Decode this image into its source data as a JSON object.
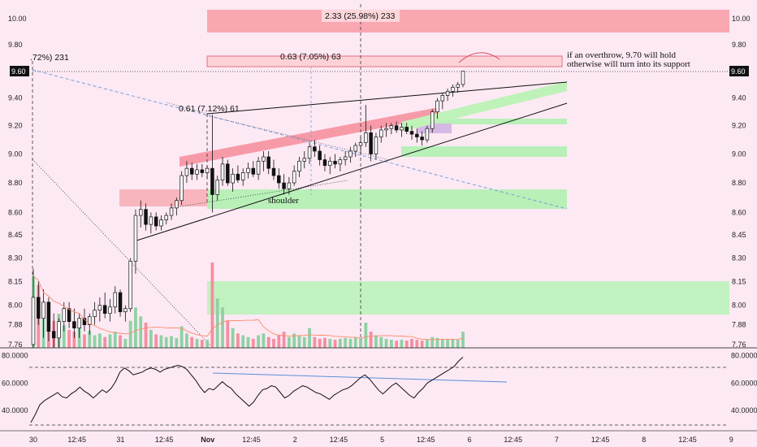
{
  "chart_data": {
    "type": "candlestick",
    "price_axis": {
      "ticks": [
        "10.00",
        "9.80",
        "9.60",
        "9.40",
        "9.20",
        "9.00",
        "8.80",
        "8.60",
        "8.45",
        "8.30",
        "8.15",
        "8.00",
        "7.88",
        "7.76"
      ],
      "current_price_label": "9.60",
      "ylim": [
        7.74,
        10.12
      ],
      "scale": "log"
    },
    "rsi_axis": {
      "ticks": [
        "80.0000",
        "60.0000",
        "40.0000"
      ],
      "ylim": [
        25,
        84
      ],
      "upper_level": 70,
      "lower_level": 30
    },
    "time_axis": {
      "ticks": [
        "30",
        "12:45",
        "31",
        "12:45",
        "Nov",
        "12:45",
        "2",
        "12:45",
        "5",
        "12:45",
        "6",
        "12:45",
        "7",
        "12:45",
        "8",
        "12:45",
        "9"
      ]
    },
    "candles": [
      {
        "o": 7.76,
        "h": 8.23,
        "l": 7.74,
        "c": 8.05
      },
      {
        "o": 8.05,
        "h": 8.15,
        "l": 7.88,
        "c": 7.92
      },
      {
        "o": 7.92,
        "h": 8.1,
        "l": 7.8,
        "c": 8.02
      },
      {
        "o": 8.02,
        "h": 8.05,
        "l": 7.78,
        "c": 7.84
      },
      {
        "o": 7.84,
        "h": 7.95,
        "l": 7.74,
        "c": 7.8
      },
      {
        "o": 7.8,
        "h": 7.92,
        "l": 7.74,
        "c": 7.9
      },
      {
        "o": 7.9,
        "h": 8.02,
        "l": 7.84,
        "c": 7.98
      },
      {
        "o": 7.98,
        "h": 8.02,
        "l": 7.86,
        "c": 7.9
      },
      {
        "o": 7.9,
        "h": 7.98,
        "l": 7.8,
        "c": 7.86
      },
      {
        "o": 7.86,
        "h": 7.95,
        "l": 7.8,
        "c": 7.92
      },
      {
        "o": 7.92,
        "h": 7.98,
        "l": 7.84,
        "c": 7.88
      },
      {
        "o": 7.88,
        "h": 7.95,
        "l": 7.82,
        "c": 7.93
      },
      {
        "o": 7.93,
        "h": 8.02,
        "l": 7.88,
        "c": 7.97
      },
      {
        "o": 7.97,
        "h": 8.05,
        "l": 7.9,
        "c": 8.0
      },
      {
        "o": 8.0,
        "h": 8.08,
        "l": 7.92,
        "c": 7.95
      },
      {
        "o": 7.95,
        "h": 8.04,
        "l": 7.9,
        "c": 7.99
      },
      {
        "o": 7.99,
        "h": 8.12,
        "l": 7.95,
        "c": 8.08
      },
      {
        "o": 8.08,
        "h": 8.1,
        "l": 7.93,
        "c": 7.96
      },
      {
        "o": 7.96,
        "h": 8.0,
        "l": 7.9,
        "c": 7.98
      },
      {
        "o": 7.98,
        "h": 8.3,
        "l": 7.96,
        "c": 8.28
      },
      {
        "o": 8.28,
        "h": 8.62,
        "l": 8.2,
        "c": 8.58
      },
      {
        "o": 8.58,
        "h": 8.68,
        "l": 8.5,
        "c": 8.62
      },
      {
        "o": 8.62,
        "h": 8.66,
        "l": 8.48,
        "c": 8.52
      },
      {
        "o": 8.52,
        "h": 8.6,
        "l": 8.46,
        "c": 8.57
      },
      {
        "o": 8.57,
        "h": 8.6,
        "l": 8.48,
        "c": 8.51
      },
      {
        "o": 8.51,
        "h": 8.58,
        "l": 8.48,
        "c": 8.55
      },
      {
        "o": 8.55,
        "h": 8.6,
        "l": 8.52,
        "c": 8.58
      },
      {
        "o": 8.58,
        "h": 8.66,
        "l": 8.55,
        "c": 8.63
      },
      {
        "o": 8.63,
        "h": 8.7,
        "l": 8.58,
        "c": 8.68
      },
      {
        "o": 8.68,
        "h": 8.88,
        "l": 8.65,
        "c": 8.85
      },
      {
        "o": 8.85,
        "h": 8.95,
        "l": 8.8,
        "c": 8.9
      },
      {
        "o": 8.9,
        "h": 8.94,
        "l": 8.82,
        "c": 8.86
      },
      {
        "o": 8.86,
        "h": 8.93,
        "l": 8.82,
        "c": 8.89
      },
      {
        "o": 8.89,
        "h": 8.93,
        "l": 8.84,
        "c": 8.87
      },
      {
        "o": 8.87,
        "h": 8.92,
        "l": 8.83,
        "c": 8.9
      },
      {
        "o": 8.9,
        "h": 9.28,
        "l": 8.6,
        "c": 8.72
      },
      {
        "o": 8.72,
        "h": 8.85,
        "l": 8.68,
        "c": 8.82
      },
      {
        "o": 8.82,
        "h": 8.98,
        "l": 8.78,
        "c": 8.93
      },
      {
        "o": 8.93,
        "h": 8.96,
        "l": 8.78,
        "c": 8.8
      },
      {
        "o": 8.8,
        "h": 8.9,
        "l": 8.74,
        "c": 8.86
      },
      {
        "o": 8.86,
        "h": 8.92,
        "l": 8.8,
        "c": 8.82
      },
      {
        "o": 8.82,
        "h": 8.9,
        "l": 8.78,
        "c": 8.87
      },
      {
        "o": 8.87,
        "h": 8.94,
        "l": 8.83,
        "c": 8.9
      },
      {
        "o": 8.9,
        "h": 8.95,
        "l": 8.84,
        "c": 8.86
      },
      {
        "o": 8.86,
        "h": 8.98,
        "l": 8.82,
        "c": 8.95
      },
      {
        "o": 8.95,
        "h": 9.02,
        "l": 8.88,
        "c": 8.98
      },
      {
        "o": 8.98,
        "h": 9.02,
        "l": 8.86,
        "c": 8.9
      },
      {
        "o": 8.9,
        "h": 8.96,
        "l": 8.82,
        "c": 8.85
      },
      {
        "o": 8.85,
        "h": 8.9,
        "l": 8.76,
        "c": 8.8
      },
      {
        "o": 8.8,
        "h": 8.86,
        "l": 8.72,
        "c": 8.76
      },
      {
        "o": 8.76,
        "h": 8.84,
        "l": 8.72,
        "c": 8.8
      },
      {
        "o": 8.8,
        "h": 8.92,
        "l": 8.78,
        "c": 8.88
      },
      {
        "o": 8.88,
        "h": 8.98,
        "l": 8.84,
        "c": 8.95
      },
      {
        "o": 8.95,
        "h": 9.02,
        "l": 8.9,
        "c": 8.97
      },
      {
        "o": 8.97,
        "h": 9.08,
        "l": 8.93,
        "c": 9.05
      },
      {
        "o": 9.05,
        "h": 9.1,
        "l": 8.98,
        "c": 9.02
      },
      {
        "o": 9.02,
        "h": 9.06,
        "l": 8.92,
        "c": 8.96
      },
      {
        "o": 8.96,
        "h": 9.0,
        "l": 8.88,
        "c": 8.92
      },
      {
        "o": 8.92,
        "h": 8.98,
        "l": 8.86,
        "c": 8.95
      },
      {
        "o": 8.95,
        "h": 9.0,
        "l": 8.9,
        "c": 8.93
      },
      {
        "o": 8.93,
        "h": 8.98,
        "l": 8.88,
        "c": 8.96
      },
      {
        "o": 8.96,
        "h": 9.02,
        "l": 8.92,
        "c": 8.98
      },
      {
        "o": 8.98,
        "h": 9.05,
        "l": 8.94,
        "c": 9.02
      },
      {
        "o": 9.02,
        "h": 9.08,
        "l": 8.98,
        "c": 9.06
      },
      {
        "o": 9.06,
        "h": 9.12,
        "l": 9.0,
        "c": 9.08
      },
      {
        "o": 9.08,
        "h": 9.35,
        "l": 9.05,
        "c": 9.15
      },
      {
        "o": 9.15,
        "h": 9.2,
        "l": 8.95,
        "c": 9.0
      },
      {
        "o": 9.0,
        "h": 9.15,
        "l": 8.96,
        "c": 9.12
      },
      {
        "o": 9.12,
        "h": 9.2,
        "l": 9.08,
        "c": 9.17
      },
      {
        "o": 9.17,
        "h": 9.22,
        "l": 9.12,
        "c": 9.18
      },
      {
        "o": 9.18,
        "h": 9.22,
        "l": 9.14,
        "c": 9.2
      },
      {
        "o": 9.2,
        "h": 9.23,
        "l": 9.15,
        "c": 9.17
      },
      {
        "o": 9.17,
        "h": 9.22,
        "l": 9.12,
        "c": 9.19
      },
      {
        "o": 9.19,
        "h": 9.22,
        "l": 9.14,
        "c": 9.16
      },
      {
        "o": 9.16,
        "h": 9.2,
        "l": 9.1,
        "c": 9.14
      },
      {
        "o": 9.14,
        "h": 9.18,
        "l": 9.08,
        "c": 9.12
      },
      {
        "o": 9.12,
        "h": 9.16,
        "l": 9.06,
        "c": 9.1
      },
      {
        "o": 9.1,
        "h": 9.2,
        "l": 9.08,
        "c": 9.18
      },
      {
        "o": 9.18,
        "h": 9.32,
        "l": 9.15,
        "c": 9.3
      },
      {
        "o": 9.3,
        "h": 9.4,
        "l": 9.25,
        "c": 9.38
      },
      {
        "o": 9.38,
        "h": 9.44,
        "l": 9.32,
        "c": 9.42
      },
      {
        "o": 9.42,
        "h": 9.47,
        "l": 9.38,
        "c": 9.45
      },
      {
        "o": 9.45,
        "h": 9.5,
        "l": 9.41,
        "c": 9.48
      },
      {
        "o": 9.48,
        "h": 9.52,
        "l": 9.44,
        "c": 9.5
      },
      {
        "o": 9.5,
        "h": 9.6,
        "l": 9.48,
        "c": 9.6
      }
    ],
    "volume_bars": [
      {
        "v": 80,
        "up": true
      },
      {
        "v": 70,
        "up": false
      },
      {
        "v": 35,
        "up": true
      },
      {
        "v": 45,
        "up": false
      },
      {
        "v": 30,
        "up": false
      },
      {
        "v": 38,
        "up": true
      },
      {
        "v": 25,
        "up": true
      },
      {
        "v": 20,
        "up": false
      },
      {
        "v": 18,
        "up": false
      },
      {
        "v": 22,
        "up": true
      },
      {
        "v": 15,
        "up": false
      },
      {
        "v": 19,
        "up": true
      },
      {
        "v": 14,
        "up": true
      },
      {
        "v": 16,
        "up": true
      },
      {
        "v": 12,
        "up": false
      },
      {
        "v": 15,
        "up": true
      },
      {
        "v": 18,
        "up": true
      },
      {
        "v": 14,
        "up": false
      },
      {
        "v": 10,
        "up": true
      },
      {
        "v": 30,
        "up": true
      },
      {
        "v": 45,
        "up": true
      },
      {
        "v": 35,
        "up": true
      },
      {
        "v": 28,
        "up": false
      },
      {
        "v": 20,
        "up": true
      },
      {
        "v": 15,
        "up": false
      },
      {
        "v": 14,
        "up": true
      },
      {
        "v": 12,
        "up": true
      },
      {
        "v": 13,
        "up": true
      },
      {
        "v": 11,
        "up": true
      },
      {
        "v": 24,
        "up": true
      },
      {
        "v": 16,
        "up": true
      },
      {
        "v": 12,
        "up": false
      },
      {
        "v": 10,
        "up": true
      },
      {
        "v": 9,
        "up": false
      },
      {
        "v": 9,
        "up": true
      },
      {
        "v": 95,
        "up": false
      },
      {
        "v": 55,
        "up": true
      },
      {
        "v": 45,
        "up": true
      },
      {
        "v": 30,
        "up": false
      },
      {
        "v": 22,
        "up": true
      },
      {
        "v": 16,
        "up": false
      },
      {
        "v": 14,
        "up": true
      },
      {
        "v": 12,
        "up": true
      },
      {
        "v": 10,
        "up": false
      },
      {
        "v": 14,
        "up": true
      },
      {
        "v": 16,
        "up": true
      },
      {
        "v": 12,
        "up": false
      },
      {
        "v": 10,
        "up": false
      },
      {
        "v": 14,
        "up": false
      },
      {
        "v": 18,
        "up": false
      },
      {
        "v": 12,
        "up": true
      },
      {
        "v": 16,
        "up": true
      },
      {
        "v": 14,
        "up": true
      },
      {
        "v": 12,
        "up": true
      },
      {
        "v": 22,
        "up": true
      },
      {
        "v": 12,
        "up": false
      },
      {
        "v": 10,
        "up": false
      },
      {
        "v": 11,
        "up": false
      },
      {
        "v": 10,
        "up": true
      },
      {
        "v": 9,
        "up": false
      },
      {
        "v": 10,
        "up": true
      },
      {
        "v": 11,
        "up": true
      },
      {
        "v": 10,
        "up": true
      },
      {
        "v": 12,
        "up": true
      },
      {
        "v": 11,
        "up": true
      },
      {
        "v": 28,
        "up": true
      },
      {
        "v": 18,
        "up": false
      },
      {
        "v": 14,
        "up": true
      },
      {
        "v": 12,
        "up": true
      },
      {
        "v": 10,
        "up": true
      },
      {
        "v": 9,
        "up": true
      },
      {
        "v": 8,
        "up": false
      },
      {
        "v": 9,
        "up": true
      },
      {
        "v": 8,
        "up": false
      },
      {
        "v": 10,
        "up": false
      },
      {
        "v": 9,
        "up": false
      },
      {
        "v": 8,
        "up": false
      },
      {
        "v": 9,
        "up": true
      },
      {
        "v": 12,
        "up": true
      },
      {
        "v": 11,
        "up": true
      },
      {
        "v": 10,
        "up": true
      },
      {
        "v": 9,
        "up": true
      },
      {
        "v": 10,
        "up": true
      },
      {
        "v": 9,
        "up": true
      },
      {
        "v": 18,
        "up": true
      }
    ],
    "rsi_values": [
      31,
      37,
      44,
      47,
      49,
      51,
      53,
      50,
      49,
      52,
      54,
      57,
      54,
      52,
      49,
      52,
      55,
      53,
      56,
      61,
      68,
      71,
      69,
      66,
      67,
      68,
      70,
      71,
      70,
      68,
      70,
      71,
      72,
      73,
      72,
      70,
      66,
      62,
      57,
      53,
      56,
      55,
      58,
      61,
      58,
      56,
      52,
      49,
      46,
      43,
      46,
      51,
      55,
      56,
      58,
      57,
      53,
      49,
      51,
      54,
      56,
      58,
      57,
      55,
      53,
      52,
      50,
      48,
      51,
      53,
      55,
      56,
      58,
      61,
      64,
      66,
      63,
      59,
      55,
      52,
      55,
      58,
      60,
      57,
      54,
      51,
      49,
      53,
      56,
      60,
      62,
      64,
      66,
      68,
      70,
      72,
      76,
      79
    ],
    "zones": [
      {
        "type": "supply",
        "from": 9.92,
        "to": 10.08,
        "label": "2.33 (25.98%) 233"
      },
      {
        "type": "supply_outline",
        "from": 9.71,
        "to": 9.78,
        "label": "0.63 (7.05%) 63"
      },
      {
        "type": "demand",
        "from": 9.2,
        "to": 9.23
      },
      {
        "type": "demand",
        "from": 8.98,
        "to": 9.04
      },
      {
        "type": "demand",
        "from": 8.6,
        "to": 8.74
      },
      {
        "type": "supply",
        "from": 8.61,
        "to": 8.75
      },
      {
        "type": "demand",
        "from": 7.88,
        "to": 8.12
      },
      {
        "type": "accumulation",
        "from": 9.1,
        "to": 9.2
      }
    ],
    "annotations": {
      "top_left_label": ".72%) 231",
      "measure_mid_label": "0.61 (7.12%) 61",
      "shoulder_label": "shoulder",
      "note_line1": "if an overthrow, 9.70 will hold",
      "note_line2": "otherwise will turn into its support"
    }
  }
}
